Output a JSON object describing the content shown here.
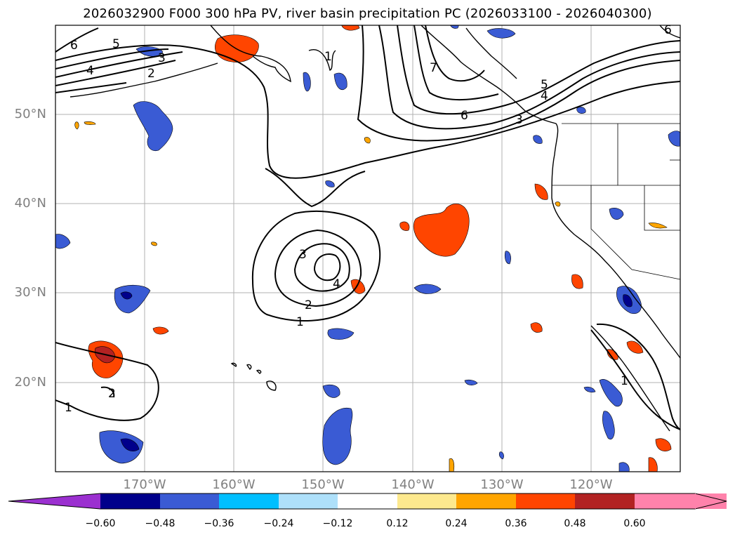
{
  "title": "2026032900 F000 300 hPa PV, river basin precipitation PC (2026033100 - 2026040300)",
  "lat_labels": [
    {
      "text": "50°N",
      "lat": 50
    },
    {
      "text": "40°N",
      "lat": 40
    },
    {
      "text": "30°N",
      "lat": 30
    },
    {
      "text": "20°N",
      "lat": 20
    }
  ],
  "lon_labels": [
    {
      "text": "170°W",
      "lon": -170
    },
    {
      "text": "160°W",
      "lon": -160
    },
    {
      "text": "150°W",
      "lon": -150
    },
    {
      "text": "140°W",
      "lon": -140
    },
    {
      "text": "130°W",
      "lon": -130
    },
    {
      "text": "120°W",
      "lon": -120
    }
  ],
  "extent": {
    "lon": [
      -180,
      -110
    ],
    "lat": [
      10,
      60
    ]
  },
  "colorbar": {
    "ticks": [
      "−0.60",
      "−0.48",
      "−0.36",
      "−0.24",
      "−0.12",
      "0.12",
      "0.24",
      "0.36",
      "0.48",
      "0.60"
    ],
    "colors": [
      "#9b30d0",
      "#00008b",
      "#3a5bd4",
      "#00bfff",
      "#aee0fa",
      "#ffffff",
      "#fde98e",
      "#ffa500",
      "#ff4500",
      "#b22222",
      "#ff82ab"
    ]
  },
  "contour_labels": [
    {
      "text": "1"
    },
    {
      "text": "2"
    },
    {
      "text": "3"
    },
    {
      "text": "4"
    },
    {
      "text": "5"
    },
    {
      "text": "6"
    },
    {
      "text": "7"
    }
  ]
}
